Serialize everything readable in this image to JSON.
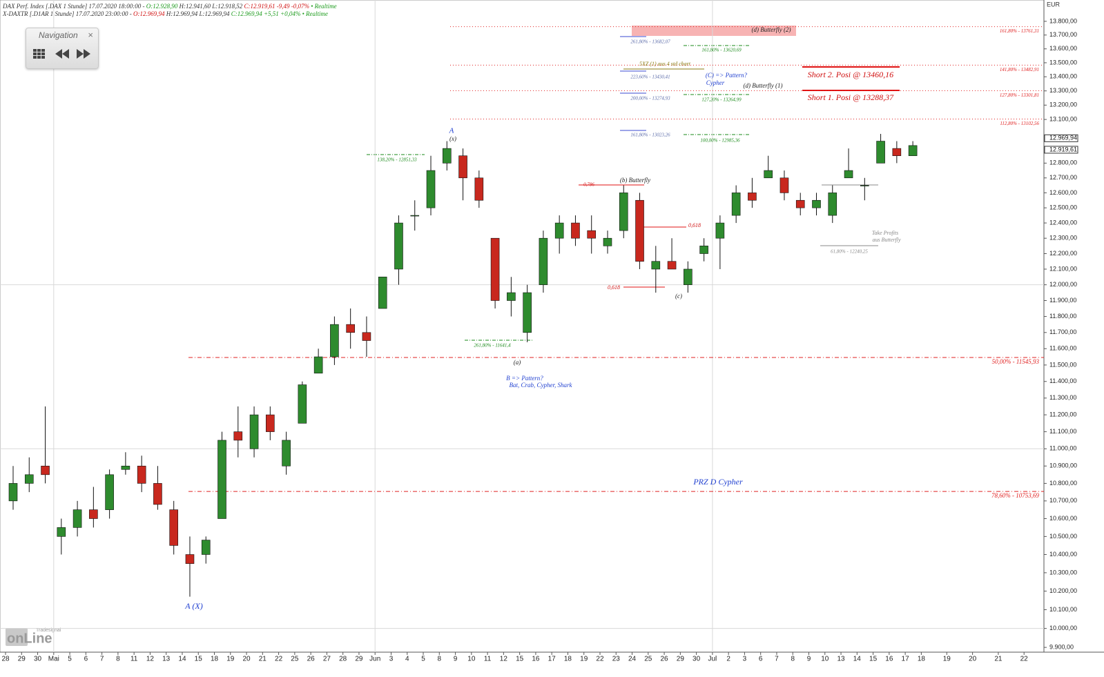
{
  "chart_data": {
    "type": "candlestick",
    "header": [
      [
        {
          "text": "DAX Perf. Index [.DAX 1 Stunde] 17.07.2020 18:00:00 - ",
          "color": "#333333"
        },
        {
          "text": "O:12.928,90",
          "color": "#1a9a1a"
        },
        {
          "text": " H:12.941,60 L:12.918,52 ",
          "color": "#333333"
        },
        {
          "text": "C:12.919,61 -9,49 -0,07%",
          "color": "#d01010"
        },
        {
          "text": " • Realtime",
          "color": "#1a9a1a"
        }
      ],
      [
        {
          "text": "X-DAXTR [.D1AR 1 Stunde] 17.07.2020 23:00:00 - ",
          "color": "#333333"
        },
        {
          "text": "O:12.969,94",
          "color": "#d01010"
        },
        {
          "text": " H:12.969,94 L:12.969,94 ",
          "color": "#333333"
        },
        {
          "text": "C:12.969,94 +5,51 +0,04%",
          "color": "#1a9a1a"
        },
        {
          "text": " • Realtime",
          "color": "#1a9a1a"
        }
      ]
    ],
    "navigation": {
      "title": "Navigation",
      "close": "×"
    },
    "currency": "EUR",
    "logo": {
      "name": "onLine",
      "brand": "Tradesignal"
    },
    "log_scale": true,
    "up_color": "#2e8b2e",
    "down_color": "#c8281e",
    "categories": [
      "28",
      "29",
      "30",
      "Mai",
      "5",
      "6",
      "7",
      "8",
      "11",
      "12",
      "13",
      "14",
      "15",
      "18",
      "19",
      "20",
      "21",
      "22",
      "25",
      "26",
      "27",
      "28",
      "29",
      "Jun",
      "3",
      "4",
      "5",
      "8",
      "9",
      "10",
      "11",
      "12",
      "15",
      "16",
      "17",
      "18",
      "19",
      "22",
      "23",
      "24",
      "25",
      "26",
      "29",
      "30",
      "Jul",
      "2",
      "3",
      "6",
      "7",
      "8",
      "9",
      "10",
      "13",
      "14",
      "15",
      "16",
      "17",
      "18",
      "19",
      "20",
      "21",
      "22"
    ],
    "open": [
      10700,
      10800,
      10900,
      10500,
      10550,
      10650,
      10650,
      10880,
      10900,
      10800,
      10650,
      10400,
      10400,
      10600,
      11100,
      11000,
      11200,
      10900,
      11150,
      11450,
      11550,
      11750,
      11700,
      11850,
      12100,
      12450,
      12500,
      12800,
      12850,
      12700,
      12300,
      11900,
      11700,
      12000,
      12300,
      12400,
      12350,
      12250,
      12350,
      12550,
      12100,
      12150,
      12000,
      12200,
      12300,
      12450,
      12600,
      12700,
      12700,
      12550,
      12500,
      12450,
      12700,
      12650,
      12800,
      12900,
      12850,
      null,
      null,
      null,
      null,
      null
    ],
    "high": [
      10900,
      10950,
      11250,
      10600,
      10700,
      10780,
      10880,
      10980,
      10960,
      10900,
      10700,
      10500,
      10500,
      11100,
      11250,
      11250,
      11250,
      11100,
      11400,
      11600,
      11800,
      11850,
      11800,
      12050,
      12450,
      12550,
      12850,
      12950,
      12900,
      12750,
      12300,
      12050,
      12000,
      12350,
      12450,
      12450,
      12450,
      12350,
      12650,
      12600,
      12250,
      12300,
      12150,
      12300,
      12450,
      12650,
      12700,
      12850,
      12750,
      12600,
      12600,
      12650,
      12900,
      12700,
      13000,
      12950,
      12950,
      null,
      null,
      null,
      null,
      null
    ],
    "low": [
      10650,
      10750,
      10800,
      10400,
      10500,
      10550,
      10600,
      10850,
      10750,
      10650,
      10400,
      10170,
      10350,
      10600,
      10950,
      10950,
      11050,
      10850,
      11150,
      11450,
      11500,
      11600,
      11550,
      11850,
      12000,
      12350,
      12450,
      12750,
      12550,
      12500,
      11850,
      11800,
      11640,
      11950,
      12200,
      12250,
      12200,
      12200,
      12300,
      12100,
      11950,
      12100,
      11950,
      12150,
      12100,
      12400,
      12500,
      12700,
      12550,
      12450,
      12450,
      12400,
      12700,
      12550,
      12800,
      12800,
      12850,
      null,
      null,
      null,
      null,
      null
    ],
    "close": [
      10800,
      10850,
      10850,
      10550,
      10650,
      10600,
      10850,
      10900,
      10800,
      10680,
      10450,
      10350,
      10480,
      11050,
      11050,
      11200,
      11100,
      11050,
      11380,
      11550,
      11750,
      11700,
      11650,
      12050,
      12400,
      12450,
      12750,
      12900,
      12700,
      12550,
      11900,
      11950,
      11950,
      12300,
      12400,
      12300,
      12300,
      12300,
      12600,
      12150,
      12150,
      12100,
      12100,
      12250,
      12400,
      12600,
      12550,
      12750,
      12600,
      12500,
      12550,
      12600,
      12750,
      12650,
      12950,
      12850,
      12920,
      null,
      null,
      null,
      null,
      null
    ],
    "ylim": [
      9875,
      13957
    ],
    "yticks": [
      {
        "value": 9900,
        "label": "9.900,00"
      },
      {
        "value": 10000,
        "label": "10.000,00"
      },
      {
        "value": 10100,
        "label": "10.100,00"
      },
      {
        "value": 10200,
        "label": "10.200,00"
      },
      {
        "value": 10300,
        "label": "10.300,00"
      },
      {
        "value": 10400,
        "label": "10.400,00"
      },
      {
        "value": 10500,
        "label": "10.500,00"
      },
      {
        "value": 10600,
        "label": "10.600,00"
      },
      {
        "value": 10700,
        "label": "10.700,00"
      },
      {
        "value": 10800,
        "label": "10.800,00"
      },
      {
        "value": 10900,
        "label": "10.900,00"
      },
      {
        "value": 11000,
        "label": "11.000,00"
      },
      {
        "value": 11100,
        "label": "11.100,00"
      },
      {
        "value": 11200,
        "label": "11.200,00"
      },
      {
        "value": 11300,
        "label": "11.300,00"
      },
      {
        "value": 11400,
        "label": "11.400,00"
      },
      {
        "value": 11500,
        "label": "11.500,00"
      },
      {
        "value": 11600,
        "label": "11.600,00"
      },
      {
        "value": 11700,
        "label": "11.700,00"
      },
      {
        "value": 11800,
        "label": "11.800,00"
      },
      {
        "value": 11900,
        "label": "11.900,00"
      },
      {
        "value": 12000,
        "label": "12.000,00"
      },
      {
        "value": 12100,
        "label": "12.100,00"
      },
      {
        "value": 12200,
        "label": "12.200,00"
      },
      {
        "value": 12300,
        "label": "12.300,00"
      },
      {
        "value": 12400,
        "label": "12.400,00"
      },
      {
        "value": 12500,
        "label": "12.500,00"
      },
      {
        "value": 12600,
        "label": "12.600,00"
      },
      {
        "value": 12700,
        "label": "12.700,00"
      },
      {
        "value": 12800,
        "label": "12.800,00"
      },
      {
        "value": 13100,
        "label": "13.100,00"
      },
      {
        "value": 13200,
        "label": "13.200,00"
      },
      {
        "value": 13300,
        "label": "13.300,00"
      },
      {
        "value": 13400,
        "label": "13.400,00"
      },
      {
        "value": 13500,
        "label": "13.500,00"
      },
      {
        "value": 13600,
        "label": "13.600,00"
      },
      {
        "value": 13700,
        "label": "13.700,00"
      },
      {
        "value": 13800,
        "label": "13.800,00"
      }
    ],
    "price_tags": [
      {
        "value": 12969.94,
        "label": "12.969,94"
      },
      {
        "value": 12919.61,
        "label": "12.919,61"
      }
    ],
    "levels": [
      {
        "value": 13761.31,
        "label": "161,80% - 13761,31",
        "style": "dotted"
      },
      {
        "value": 13482.91,
        "label": "141,80% - 13482,91",
        "style": "dotted"
      },
      {
        "value": 13301.81,
        "label": "127,80% - 13301,81",
        "style": "dotted"
      },
      {
        "value": 13102.56,
        "label": "112,80% - 13102,56",
        "style": "dotted"
      },
      {
        "value": 11545.93,
        "label": "50,00% - 11545,93",
        "style": "dashdot"
      },
      {
        "value": 10753.69,
        "label": "78,60% - 10753,69",
        "style": "dashdot"
      }
    ],
    "annotations": [
      {
        "text": "A (X)",
        "color": "#1f3fd0"
      },
      {
        "text": "A",
        "color": "#1f3fd0"
      },
      {
        "text": "(x)",
        "color": "#222222"
      },
      {
        "text": "138,20% - 12851,33",
        "color": "#1a8a1a"
      },
      {
        "text": "(b) Butterfly",
        "color": "#222222"
      },
      {
        "text": "0,786",
        "color": "#d01010"
      },
      {
        "text": "0,618",
        "color": "#d01010"
      },
      {
        "text": "0,618",
        "color": "#d01010"
      },
      {
        "text": "(c)",
        "color": "#222222"
      },
      {
        "text": "261,80% - 11641,4",
        "color": "#1a8a1a"
      },
      {
        "text": "(a)",
        "color": "#222222"
      },
      {
        "text": "B => Pattern?",
        "color": "#1f3fd0"
      },
      {
        "text": "Bat, Crab, Cypher, Shark",
        "color": "#1f3fd0"
      },
      {
        "text": "PRZ D Cypher",
        "color": "#1f3fd0"
      },
      {
        "text": "(d) Butterfly (2)",
        "color": "#222222"
      },
      {
        "text": "261,80% - 13682,07",
        "color": "#5a6aa8"
      },
      {
        "text": "161,80% - 13620,69",
        "color": "#1a8a1a"
      },
      {
        "text": "5XZ (1) aus 4 std chart",
        "color": "#8a7a10"
      },
      {
        "text": "223,60% - 13430,41",
        "color": "#5a6aa8"
      },
      {
        "text": "(C) => Pattern?",
        "color": "#1f3fd0"
      },
      {
        "text": "Cypher",
        "color": "#1f3fd0"
      },
      {
        "text": "(d) Butterfly (1)",
        "color": "#222222"
      },
      {
        "text": "200,00% - 13274,93",
        "color": "#5a6aa8"
      },
      {
        "text": "127,20% - 13264,99",
        "color": "#1a8a1a"
      },
      {
        "text": "161,80% - 13023,26",
        "color": "#5a6aa8"
      },
      {
        "text": "100,00% - 12985,36",
        "color": "#1a8a1a"
      },
      {
        "text": "Short 2. Posi @ 13460,16",
        "color": "#d01010"
      },
      {
        "text": "Short 1. Posi @ 13288,37",
        "color": "#d01010"
      },
      {
        "text": "Take Profits",
        "color": "#888888"
      },
      {
        "text": "aus Butterfly",
        "color": "#888888"
      },
      {
        "text": "61,80% - 12240,25",
        "color": "#888888"
      }
    ]
  }
}
